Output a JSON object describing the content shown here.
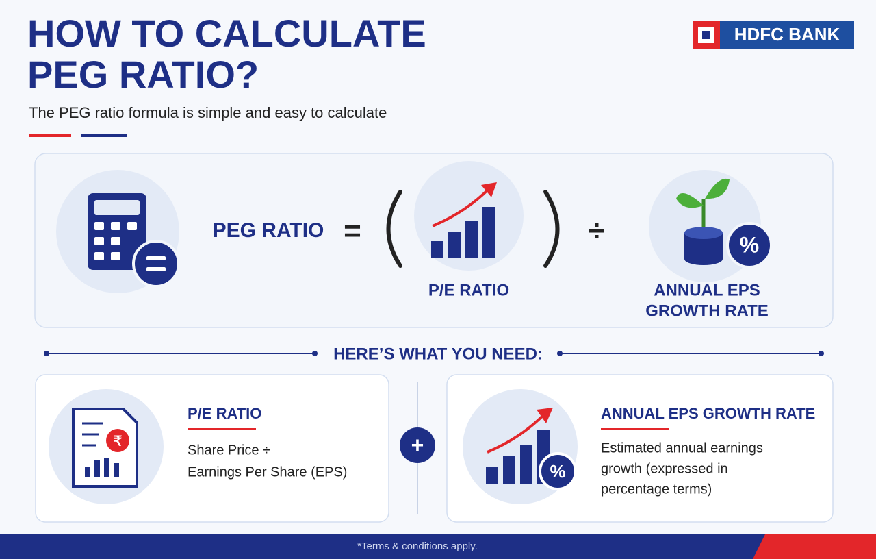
{
  "header": {
    "title_lines": [
      "HOW TO CALCULATE",
      "PEG RATIO?"
    ],
    "subtitle": "The PEG ratio formula is simple and easy to calculate",
    "logo": "HDFC BANK"
  },
  "formula": {
    "left": "PEG RATIO",
    "equals": "=",
    "divide": "÷",
    "numerator": "P/E RATIO",
    "denominator_lines": [
      "ANNUAL EPS",
      "GROWTH RATE"
    ],
    "percent_icon": "%"
  },
  "section_heading": "HERE’S WHAT YOU NEED:",
  "plus": "+",
  "cards": [
    {
      "title": "P/E RATIO",
      "lines": [
        "Share Price ÷",
        "Earnings Per Share (EPS)"
      ],
      "icon_symbol": "₹"
    },
    {
      "title": "ANNUAL EPS GROWTH RATE",
      "lines": [
        "Estimated annual earnings",
        "growth (expressed in",
        "percentage terms)"
      ],
      "icon_symbol": "%"
    }
  ],
  "footer": "*Terms & conditions apply."
}
